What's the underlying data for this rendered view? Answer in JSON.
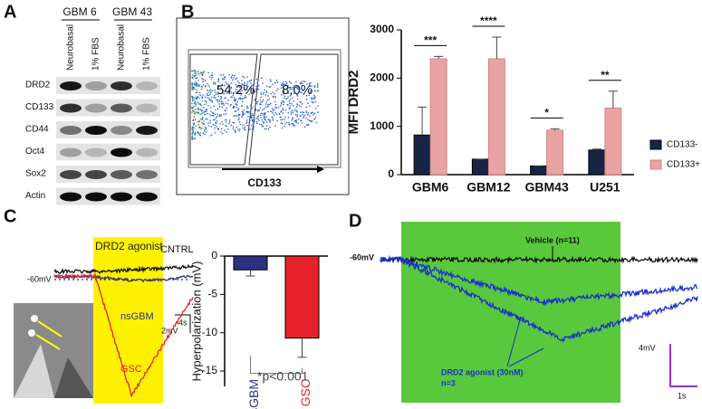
{
  "panel_a": {
    "letter": "A",
    "groups": [
      "GBM 6",
      "GBM 43"
    ],
    "lanes": [
      "Neurobasal",
      "1% FBS",
      "Neurobasal",
      "1% FBS"
    ],
    "rows": [
      "DRD2",
      "CD133",
      "CD44",
      "Oct4",
      "Sox2",
      "Actin"
    ]
  },
  "panel_b": {
    "letter": "B",
    "gates": [
      "54.2%",
      "8.0%"
    ],
    "axis": "CD133"
  },
  "panel_c": {
    "letter": "C",
    "labels": {
      "agonist": "DRD2 agonist",
      "control": "CNTRL",
      "rest": "-60mV",
      "ns": "nsGBM",
      "gsc": "GSC",
      "scale_v": "2mV",
      "scale_t": "4s"
    }
  },
  "panel_d": {
    "letter": "D",
    "labels": {
      "rest": "-60mV",
      "vehicle": "Vehicle (n=11)",
      "agonist": "DRD2 agonist (30nM)",
      "n": "n=3",
      "scale_v": "4mV",
      "scale_t": "1s"
    }
  },
  "chart_data": [
    {
      "type": "bar",
      "ylabel": "MFI DRD2",
      "categories": [
        "GBM6",
        "GBM12",
        "GBM43",
        "U251"
      ],
      "series": [
        {
          "name": "CD133-",
          "color": "#172544",
          "values": [
            820,
            320,
            180,
            510
          ],
          "errors": [
            580,
            0,
            0,
            20
          ]
        },
        {
          "name": "CD133+",
          "color": "#e9a3a3",
          "values": [
            2400,
            2400,
            920,
            1380
          ],
          "errors": [
            50,
            450,
            30,
            350
          ]
        }
      ],
      "annotations": [
        "***",
        "****",
        "*",
        "**"
      ],
      "ylim": [
        0,
        3000
      ],
      "yticks": [
        0,
        1000,
        2000,
        3000
      ],
      "legend": "right"
    },
    {
      "type": "bar",
      "ylabel": "Hyperpolarization (mV)",
      "categories": [
        "nsGBM",
        "GSC"
      ],
      "values": [
        -1.8,
        -10.7
      ],
      "errors": [
        0.8,
        2.5
      ],
      "colors": [
        "#2b3180",
        "#e8222b"
      ],
      "annotation": "*p<0.001",
      "ylim": [
        -17,
        0
      ],
      "yticks": [
        0,
        -5,
        -10,
        -15
      ]
    }
  ]
}
